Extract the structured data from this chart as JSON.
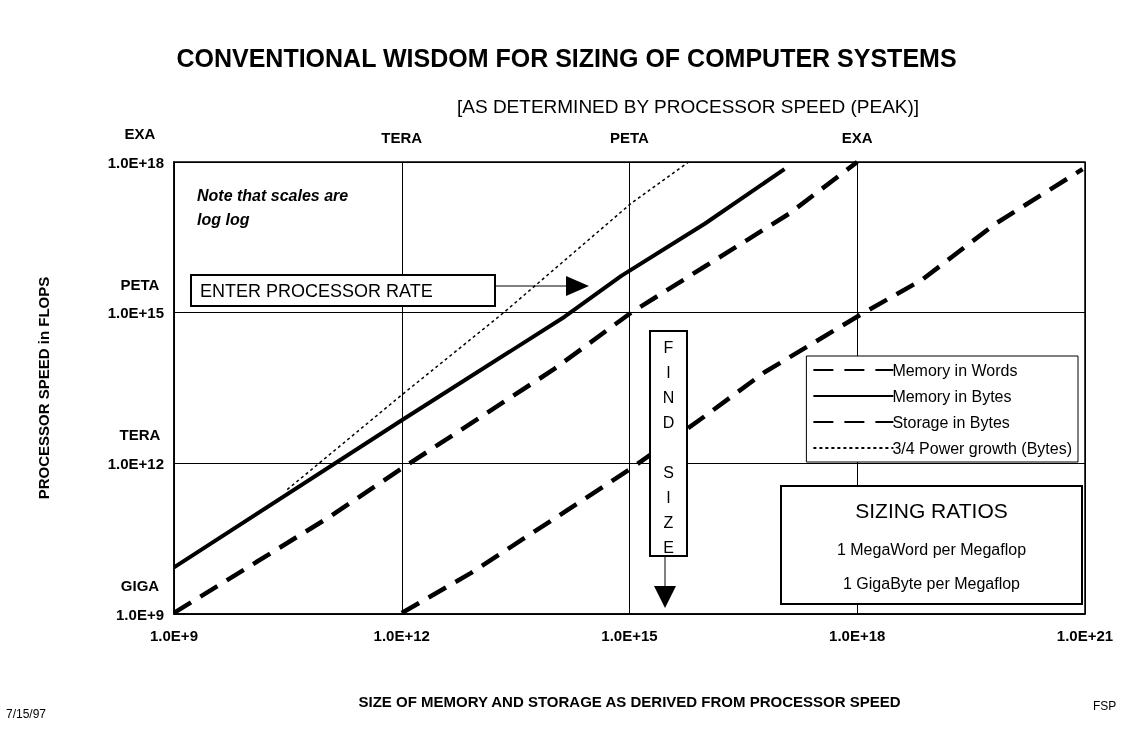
{
  "chart_data": {
    "type": "line",
    "title": "CONVENTIONAL WISDOM FOR SIZING OF COMPUTER SYSTEMS",
    "subtitle": "[AS DETERMINED BY PROCESSOR SPEED (PEAK)]",
    "xlabel": "SIZE OF MEMORY AND STORAGE AS DERIVED FROM PROCESSOR SPEED",
    "ylabel": "PROCESSOR SPEED in FLOPS",
    "annotations": [
      "Note that scales are log log",
      "ENTER PROCESSOR RATE",
      "FIND SIZE",
      "SIZING RATIOS",
      "1 MegaWord per Megaflop",
      "1 GigaByte per Megaflop",
      "7/15/97",
      "FSP",
      "TERA",
      "PETA",
      "EXA",
      "GIGA",
      "TERA",
      "PETA",
      "EXA"
    ],
    "series": [
      {
        "name": "Memory in Words",
        "color": "#000000",
        "line_style": "dashed",
        "x": [
          1000000000.0,
          105000000000.0,
          1000000000000.0,
          100000000000000.0,
          1050000000000000.0,
          9800000000000000.0,
          1.26e+17,
          1e+18
        ],
        "values": [
          1050000000.0,
          81000000000.0,
          790000000000.0,
          74000000000000.0,
          1000000000000000.0,
          8300000000000000.0,
          9.3e+16,
          1e+18
        ]
      },
      {
        "name": "Memory in Bytes",
        "color": "#000000",
        "line_style": "solid",
        "x": [
          1000000000.0,
          1000000000000.0,
          140000000000000.0,
          780000000000000.0,
          9800000000000000.0,
          1.1e+17
        ],
        "values": [
          8500000000.0,
          7200000000000.0,
          830000000000000.0,
          5400000000000000.0,
          5.9e+16,
          7.2e+17
        ]
      },
      {
        "name": "Storage in Bytes",
        "color": "#000000",
        "line_style": "dashed",
        "x": [
          1000000000000.0,
          8100000000000.0,
          1050000000000000.0,
          8900000000000000.0,
          6e+16,
          1.1e+18,
          7.1e+18,
          6.6e+19,
          9.3e+20
        ],
        "values": [
          1050000000.0,
          6500000000.0,
          790000000000.0,
          7800000000000.0,
          65000000000000.0,
          910000000000000.0,
          4500000000000000.0,
          5.9e+16,
          7.2e+17
        ]
      },
      {
        "name": "3/4 Power growth (Bytes)",
        "color": "#000000",
        "line_style": "dotted",
        "x": [
          31000000000.0,
          1000000000000.0,
          22000000000000.0,
          1050000000000000.0,
          6000000000000000.0
        ],
        "values": [
          300000000000.0,
          23000000000000.0,
          1000000000000000.0,
          1.5e+17,
          1e+18
        ]
      }
    ],
    "xlim": [
      1000000000.0,
      1e+21
    ],
    "xticks": [
      {
        "value": 1000000000.0,
        "label": "1.0E+9"
      },
      {
        "value": 1000000000000.0,
        "label": "1.0E+12"
      },
      {
        "value": 1000000000000000.0,
        "label": "1.0E+15"
      },
      {
        "value": 1e+18,
        "label": "1.0E+18"
      },
      {
        "value": 1e+21,
        "label": "1.0E+21"
      }
    ],
    "ylim": [
      1000000000.0,
      1e+18
    ],
    "yticks": [
      {
        "value": 1000000000.0,
        "label": "1.0E+9"
      },
      {
        "value": 1000000000000.0,
        "label": "1.0E+12"
      },
      {
        "value": 1000000000000000.0,
        "label": "1.0E+15"
      },
      {
        "value": 1e+18,
        "label": "1.0E+18"
      }
    ],
    "log": "xy",
    "grid": true,
    "legend": "right",
    "marker": "none"
  }
}
